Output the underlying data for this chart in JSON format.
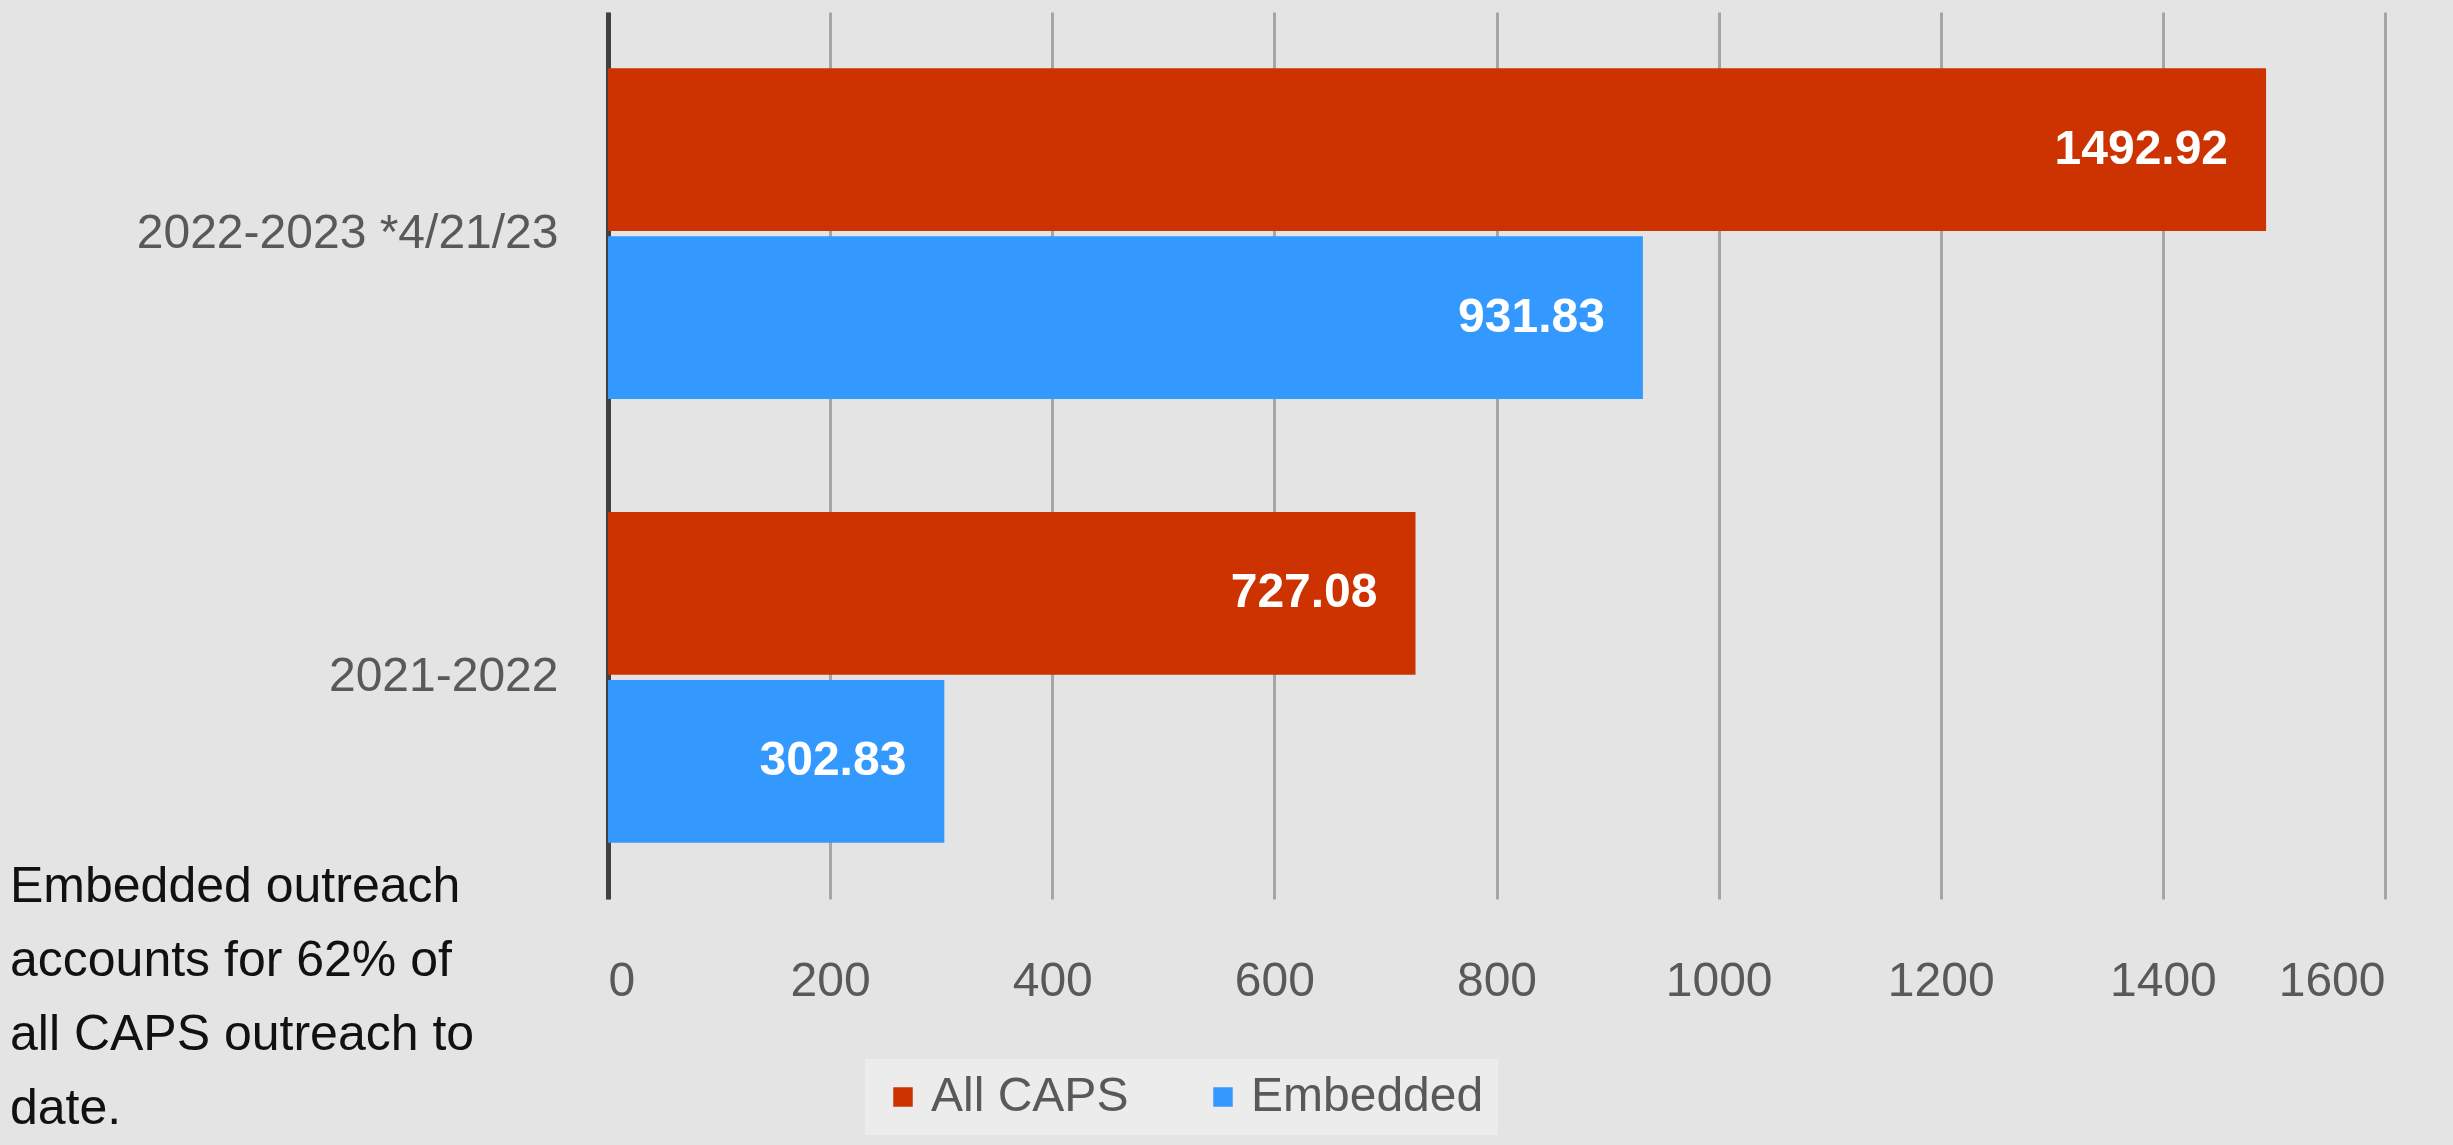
{
  "chart_data": {
    "type": "bar",
    "orientation": "horizontal",
    "categories": [
      "2022-2023 *4/21/23",
      "2021-2022"
    ],
    "series": [
      {
        "name": "All CAPS",
        "color": "#cc3300",
        "values": [
          1492.92,
          727.08
        ]
      },
      {
        "name": "Embedded",
        "color": "#3399ff",
        "values": [
          931.83,
          302.83
        ]
      }
    ],
    "xlim": [
      0,
      1600
    ],
    "xticks": [
      0,
      200,
      400,
      600,
      800,
      1000,
      1200,
      1400,
      1600
    ],
    "grid": "x",
    "legend": "bottom",
    "data_labels": true,
    "annotations": [
      "Embedded outreach accounts for 62% of all CAPS outreach to date."
    ]
  }
}
